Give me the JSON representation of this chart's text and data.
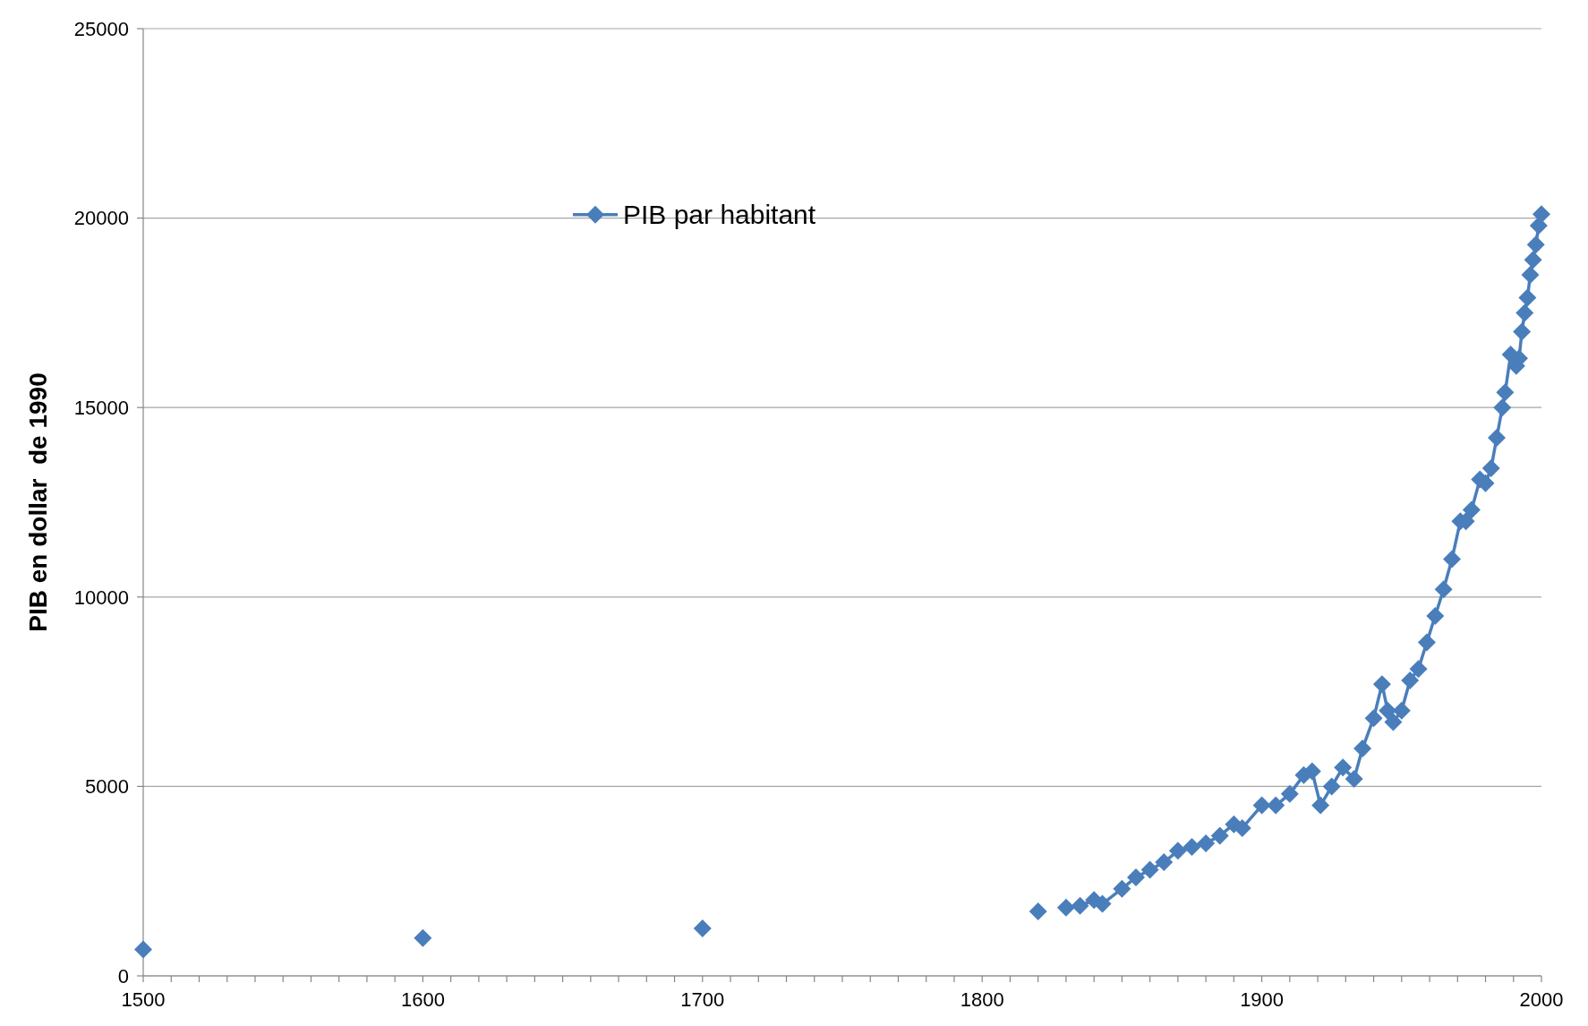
{
  "chart_data": {
    "type": "line",
    "ylabel": "PIB en dollar  de 1990",
    "x": [
      1500,
      1550,
      1600,
      1650,
      1700,
      1750,
      1820,
      1825,
      1830,
      1835,
      1840,
      1843,
      1850,
      1855,
      1860,
      1865,
      1870,
      1875,
      1880,
      1885,
      1890,
      1893,
      1900,
      1905,
      1910,
      1915,
      1918,
      1921,
      1925,
      1929,
      1933,
      1936,
      1940,
      1943,
      1945,
      1947,
      1950,
      1953,
      1956,
      1959,
      1962,
      1965,
      1968,
      1971,
      1973,
      1975,
      1978,
      1980,
      1982,
      1984,
      1986,
      1987,
      1989,
      1991,
      1992,
      1993,
      1994,
      1995,
      1996,
      1997,
      1998,
      1999,
      2000
    ],
    "series": [
      {
        "name": "PIB par habitant",
        "color": "#4a7ebb",
        "values": [
          700,
          null,
          1000,
          null,
          1250,
          null,
          1700,
          null,
          1800,
          1850,
          2000,
          1900,
          2300,
          2600,
          2800,
          3000,
          3300,
          3400,
          3500,
          3700,
          4000,
          3900,
          4500,
          4500,
          4800,
          5300,
          5400,
          4500,
          5000,
          5500,
          5200,
          6000,
          6800,
          7700,
          7000,
          6700,
          7000,
          7800,
          8100,
          8800,
          9500,
          10200,
          11000,
          12000,
          12000,
          12300,
          13100,
          13000,
          13400,
          14200,
          15000,
          15400,
          16400,
          16100,
          16300,
          17000,
          17500,
          17900,
          18500,
          18900,
          19300,
          19800,
          20100
        ]
      }
    ],
    "xlim": [
      1500,
      2000
    ],
    "ylim": [
      0,
      25000
    ],
    "yticks": [
      0,
      5000,
      10000,
      15000,
      20000,
      25000
    ],
    "xticks": [
      1500,
      {
        "value": 1510,
        "label": null
      },
      {
        "value": 1520,
        "label": null
      },
      {
        "value": 1530,
        "label": null
      },
      {
        "value": 1540,
        "label": null
      },
      {
        "value": 1550,
        "label": null
      },
      {
        "value": 1560,
        "label": null
      },
      {
        "value": 1570,
        "label": null
      },
      {
        "value": 1580,
        "label": null
      },
      {
        "value": 1590,
        "label": null
      },
      1600,
      {
        "value": 1610,
        "label": null
      },
      {
        "value": 1620,
        "label": null
      },
      {
        "value": 1630,
        "label": null
      },
      {
        "value": 1640,
        "label": null
      },
      {
        "value": 1650,
        "label": null
      },
      {
        "value": 1660,
        "label": null
      },
      {
        "value": 1670,
        "label": null
      },
      {
        "value": 1680,
        "label": null
      },
      {
        "value": 1690,
        "label": null
      },
      1700,
      {
        "value": 1710,
        "label": null
      },
      {
        "value": 1720,
        "label": null
      },
      {
        "value": 1730,
        "label": null
      },
      {
        "value": 1740,
        "label": null
      },
      {
        "value": 1750,
        "label": null
      },
      {
        "value": 1760,
        "label": null
      },
      {
        "value": 1770,
        "label": null
      },
      {
        "value": 1780,
        "label": null
      },
      {
        "value": 1790,
        "label": null
      },
      1800,
      {
        "value": 1810,
        "label": null
      },
      {
        "value": 1820,
        "label": null
      },
      {
        "value": 1830,
        "label": null
      },
      {
        "value": 1840,
        "label": null
      },
      {
        "value": 1850,
        "label": null
      },
      {
        "value": 1860,
        "label": null
      },
      {
        "value": 1870,
        "label": null
      },
      {
        "value": 1880,
        "label": null
      },
      {
        "value": 1890,
        "label": null
      },
      1900,
      {
        "value": 1910,
        "label": null
      },
      {
        "value": 1920,
        "label": null
      },
      {
        "value": 1930,
        "label": null
      },
      {
        "value": 1940,
        "label": null
      },
      {
        "value": 1950,
        "label": null
      },
      {
        "value": 1960,
        "label": null
      },
      {
        "value": 1970,
        "label": null
      },
      {
        "value": 1980,
        "label": null
      },
      {
        "value": 1990,
        "label": null
      },
      2000
    ],
    "grid": "y",
    "legend": "top left",
    "marker": "diamond",
    "line_style": "solid"
  }
}
